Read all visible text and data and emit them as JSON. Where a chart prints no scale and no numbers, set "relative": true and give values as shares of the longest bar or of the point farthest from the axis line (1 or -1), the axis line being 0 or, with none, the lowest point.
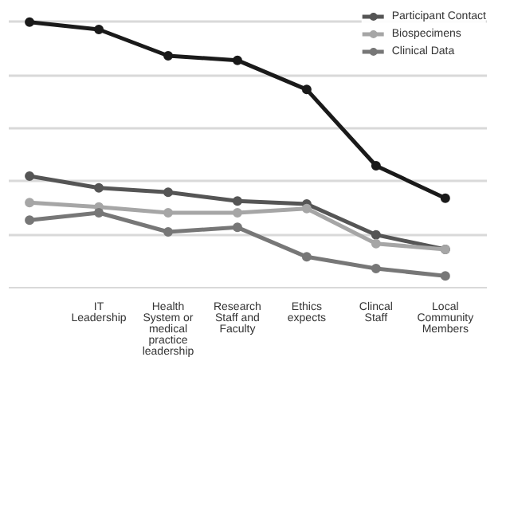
{
  "chart_data": {
    "type": "line",
    "relative": true,
    "grid": "y",
    "legend": "top right",
    "marker": "circle",
    "line_style": "solid",
    "categories": [
      null,
      "IT Leadership",
      "Health System or medical practice leadership",
      "Research Staff and Faculty",
      "Ethics expects",
      "Clincal Staff",
      "Local Community Members"
    ],
    "series": [
      {
        "name": "Participant Contact",
        "color": "#555555",
        "values": [
          0.42,
          0.376,
          0.359,
          0.326,
          0.315,
          0.199,
          0.144
        ]
      },
      {
        "name": "Biospecimens",
        "color": "#a6a6a6",
        "values": [
          0.32,
          0.304,
          0.282,
          0.282,
          0.298,
          0.166,
          0.144
        ]
      },
      {
        "name": "Clinical Data",
        "color": "#777777",
        "values": [
          0.254,
          0.282,
          0.21,
          0.227,
          0.116,
          0.072,
          0.044
        ]
      },
      {
        "color": "#1a1a1a",
        "values": [
          1.0,
          0.972,
          0.873,
          0.856,
          0.746,
          0.459,
          0.337
        ]
      }
    ]
  }
}
